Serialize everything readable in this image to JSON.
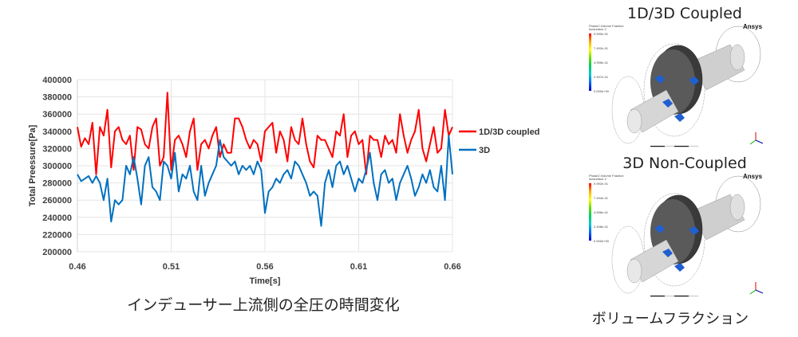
{
  "chart_data": {
    "type": "line",
    "xlabel": "Time[s]",
    "ylabel": "Total Preessure[Pa]",
    "xlim": [
      0.46,
      0.66
    ],
    "ylim": [
      200000,
      400000
    ],
    "xticks": [
      "0.46",
      "0.51",
      "0.56",
      "0.61",
      "0.66"
    ],
    "yticks": [
      "200000",
      "220000",
      "240000",
      "260000",
      "280000",
      "300000",
      "320000",
      "340000",
      "360000",
      "380000",
      "400000"
    ],
    "grid": true,
    "legend_position": "right",
    "x_start": 0.46,
    "x_step": 0.002,
    "series": [
      {
        "name": "1D/3D coupled",
        "color": "#ff0000",
        "values": [
          345000,
          322000,
          332000,
          325000,
          350000,
          290000,
          345000,
          335000,
          365000,
          298000,
          340000,
          345000,
          330000,
          325000,
          335000,
          295000,
          345000,
          342000,
          325000,
          320000,
          345000,
          355000,
          300000,
          310000,
          385000,
          295000,
          330000,
          335000,
          325000,
          310000,
          340000,
          355000,
          295000,
          325000,
          330000,
          320000,
          335000,
          345000,
          310000,
          325000,
          315000,
          315000,
          355000,
          355000,
          345000,
          330000,
          320000,
          330000,
          325000,
          305000,
          340000,
          345000,
          350000,
          315000,
          340000,
          330000,
          305000,
          345000,
          330000,
          325000,
          355000,
          325000,
          305000,
          298000,
          335000,
          330000,
          330000,
          320000,
          310000,
          340000,
          335000,
          360000,
          310000,
          335000,
          340000,
          325000,
          330000,
          290000,
          335000,
          330000,
          330000,
          310000,
          335000,
          325000,
          330000,
          315000,
          360000,
          335000,
          315000,
          330000,
          340000,
          365000,
          320000,
          305000,
          325000,
          345000,
          315000,
          320000,
          365000,
          335000,
          345000
        ]
      },
      {
        "name": "3D",
        "color": "#0070c0",
        "values": [
          290000,
          282000,
          285000,
          288000,
          280000,
          288000,
          280000,
          260000,
          285000,
          235000,
          260000,
          255000,
          260000,
          300000,
          290000,
          310000,
          285000,
          255000,
          300000,
          310000,
          275000,
          270000,
          260000,
          305000,
          300000,
          285000,
          315000,
          270000,
          290000,
          285000,
          300000,
          270000,
          260000,
          300000,
          265000,
          280000,
          290000,
          300000,
          330000,
          310000,
          305000,
          300000,
          305000,
          290000,
          300000,
          295000,
          300000,
          290000,
          305000,
          295000,
          245000,
          270000,
          275000,
          285000,
          280000,
          290000,
          295000,
          285000,
          305000,
          300000,
          290000,
          280000,
          265000,
          270000,
          265000,
          230000,
          280000,
          295000,
          275000,
          300000,
          305000,
          290000,
          300000,
          285000,
          270000,
          285000,
          280000,
          295000,
          315000,
          280000,
          260000,
          290000,
          295000,
          280000,
          285000,
          260000,
          280000,
          290000,
          300000,
          285000,
          265000,
          275000,
          290000,
          280000,
          295000,
          275000,
          270000,
          300000,
          260000,
          335000,
          290000
        ]
      }
    ]
  },
  "caption": "インデューサー上流側の全圧の時間変化",
  "panels": [
    {
      "title": "1D/3D Coupled",
      "brand": "Ansys",
      "legend_title": "Phase2.Volume Fraction",
      "legend_subtitle": "Isosurface 2",
      "legend_values": [
        "9.990e-01",
        "7.492e-01",
        "4.995e-01",
        "2.497e-01",
        "0.000e+00"
      ]
    },
    {
      "title": "3D Non-Coupled",
      "brand": "Ansys",
      "legend_title": "Phase2.Volume Fraction",
      "legend_subtitle": "Isosurface 2",
      "legend_values": [
        "9.992e-01",
        "7.494e-01",
        "4.996e-01",
        "2.498e-01",
        "0.000e+00"
      ]
    }
  ],
  "panels_caption": "ボリュームフラクション"
}
